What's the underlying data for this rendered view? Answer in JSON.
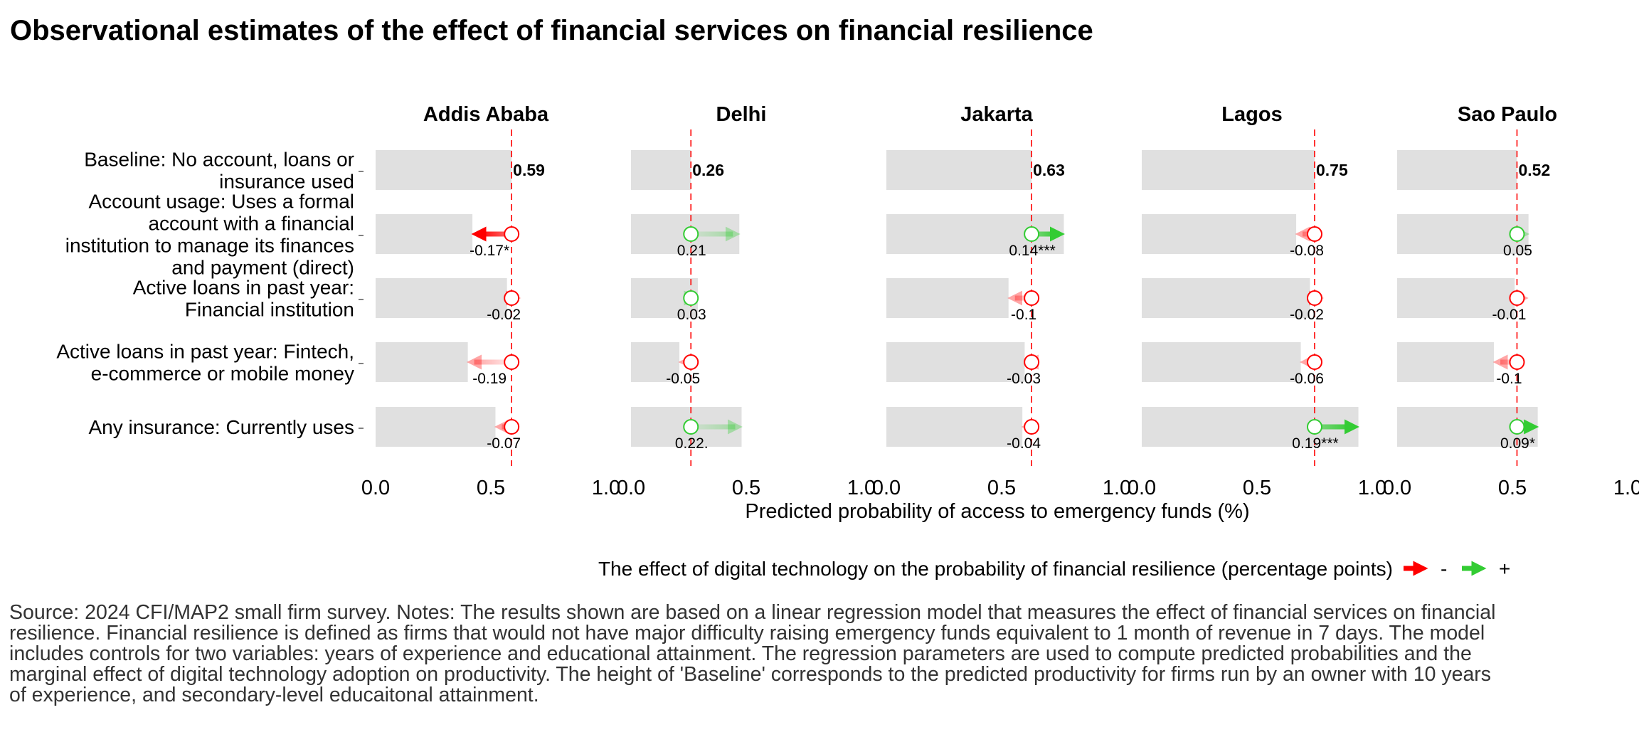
{
  "chart_data": {
    "type": "bar",
    "title": "Observational estimates of the effect of financial services on financial resilience",
    "xlabel": "Predicted probability of access to emergency funds (%)",
    "xlim": [
      0,
      1
    ],
    "x_ticks": [
      "0.0",
      "0.5",
      "1.0"
    ],
    "grid": false,
    "legend_position": "bottom",
    "legend": {
      "title": "The effect of digital technology on the probability of financial resilience (percentage points)",
      "items": [
        {
          "label": "-",
          "color": "#ff0000"
        },
        {
          "label": "+",
          "color": "#33cc33"
        }
      ]
    },
    "colors": {
      "negative": "#ff0000",
      "positive": "#33cc33",
      "bar": "#e0e0e0",
      "baseline_line": "#ff0000"
    },
    "rows": [
      {
        "label": "Baseline: No account, loans or insurance used",
        "lines": [
          "Baseline: No account, loans or",
          "insurance used"
        ]
      },
      {
        "label": "Account usage: Uses a formal account with a financial institution to manage its finances and payment (direct)",
        "lines": [
          "Account usage: Uses a formal",
          "account with a financial",
          "institution to manage its finances",
          "and payment (direct)"
        ]
      },
      {
        "label": "Active loans in past year: Financial institution",
        "lines": [
          "Active loans in past year:",
          "Financial institution"
        ]
      },
      {
        "label": "Active loans in past year: Fintech, e-commerce or mobile money",
        "lines": [
          "Active loans in past year: Fintech,",
          "e-commerce or mobile money"
        ]
      },
      {
        "label": "Any insurance: Currently uses",
        "lines": [
          "Any insurance: Currently uses"
        ]
      }
    ],
    "facets": [
      {
        "name": "Addis Ababa",
        "baseline": 0.59,
        "baseline_label": "0.59",
        "effects": [
          {
            "value": -0.17,
            "label": "-0.17*",
            "significant": true
          },
          {
            "value": -0.02,
            "label": "-0.02",
            "significant": false
          },
          {
            "value": -0.19,
            "label": "-0.19",
            "significant": false
          },
          {
            "value": -0.07,
            "label": "-0.07",
            "significant": false
          }
        ]
      },
      {
        "name": "Delhi",
        "baseline": 0.26,
        "baseline_label": "0.26",
        "effects": [
          {
            "value": 0.21,
            "label": "0.21",
            "significant": false
          },
          {
            "value": 0.03,
            "label": "0.03",
            "significant": false
          },
          {
            "value": -0.05,
            "label": "-0.05",
            "significant": false
          },
          {
            "value": 0.22,
            "label": "0.22.",
            "significant": false
          }
        ]
      },
      {
        "name": "Jakarta",
        "baseline": 0.63,
        "baseline_label": "0.63",
        "effects": [
          {
            "value": 0.14,
            "label": "0.14***",
            "significant": true
          },
          {
            "value": -0.1,
            "label": "-0.1",
            "significant": false
          },
          {
            "value": -0.03,
            "label": "-0.03",
            "significant": false
          },
          {
            "value": -0.04,
            "label": "-0.04",
            "significant": false
          }
        ]
      },
      {
        "name": "Lagos",
        "baseline": 0.75,
        "baseline_label": "0.75",
        "effects": [
          {
            "value": -0.08,
            "label": "-0.08",
            "significant": false
          },
          {
            "value": -0.02,
            "label": "-0.02",
            "significant": false
          },
          {
            "value": -0.06,
            "label": "-0.06",
            "significant": false
          },
          {
            "value": 0.19,
            "label": "0.19***",
            "significant": true
          }
        ]
      },
      {
        "name": "Sao Paulo",
        "baseline": 0.52,
        "baseline_label": "0.52",
        "effects": [
          {
            "value": 0.05,
            "label": "0.05",
            "significant": false
          },
          {
            "value": -0.01,
            "label": "-0.01",
            "significant": false
          },
          {
            "value": -0.1,
            "label": "-0.1",
            "significant": false
          },
          {
            "value": 0.09,
            "label": "0.09*",
            "significant": true
          }
        ]
      }
    ],
    "caption_lines": [
      "Source: 2024 CFI/MAP2 small firm survey. Notes: The results shown are based on a linear regression model that measures the effect of financial services on financial",
      "resilience. Financial resilience is defined as firms that would not have major difficulty raising emergency funds equivalent to 1 month of revenue in 7 days. The model",
      "includes controls for two variables: years of experience and educational attainment. The regression parameters are used to compute predicted probabilities and the",
      "marginal effect of digital technology adoption on productivity. The height of 'Baseline' corresponds to the predicted productivity for firms run by an owner with 10 years",
      "of experience, and secondary-level educaitonal attainment."
    ]
  }
}
